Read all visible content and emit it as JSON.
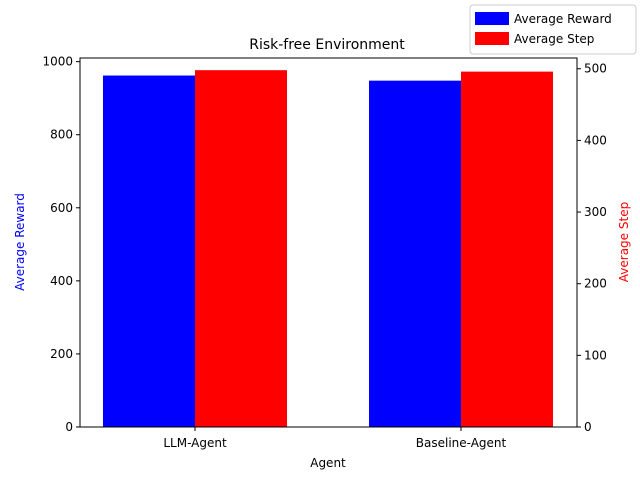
{
  "chart_data": {
    "type": "bar",
    "title": "Risk-free Environment",
    "xlabel": "Agent",
    "categories": [
      "LLM-Agent",
      "Baseline-Agent"
    ],
    "y_left": {
      "label": "Average Reward",
      "color": "#0000ff",
      "ylim": [
        0,
        1010
      ],
      "ticks": [
        0,
        200,
        400,
        600,
        800,
        1000
      ]
    },
    "y_right": {
      "label": "Average Step",
      "color": "#ff0000",
      "ylim": [
        0,
        515
      ],
      "ticks": [
        0,
        100,
        200,
        300,
        400,
        500
      ]
    },
    "series": [
      {
        "name": "Average Reward",
        "axis": "left",
        "color": "#0000ff",
        "values": [
          962,
          948
        ]
      },
      {
        "name": "Average Step",
        "axis": "right",
        "color": "#ff0000",
        "values": [
          498,
          496
        ]
      }
    ],
    "legend_position": "top-right",
    "grid": false
  }
}
